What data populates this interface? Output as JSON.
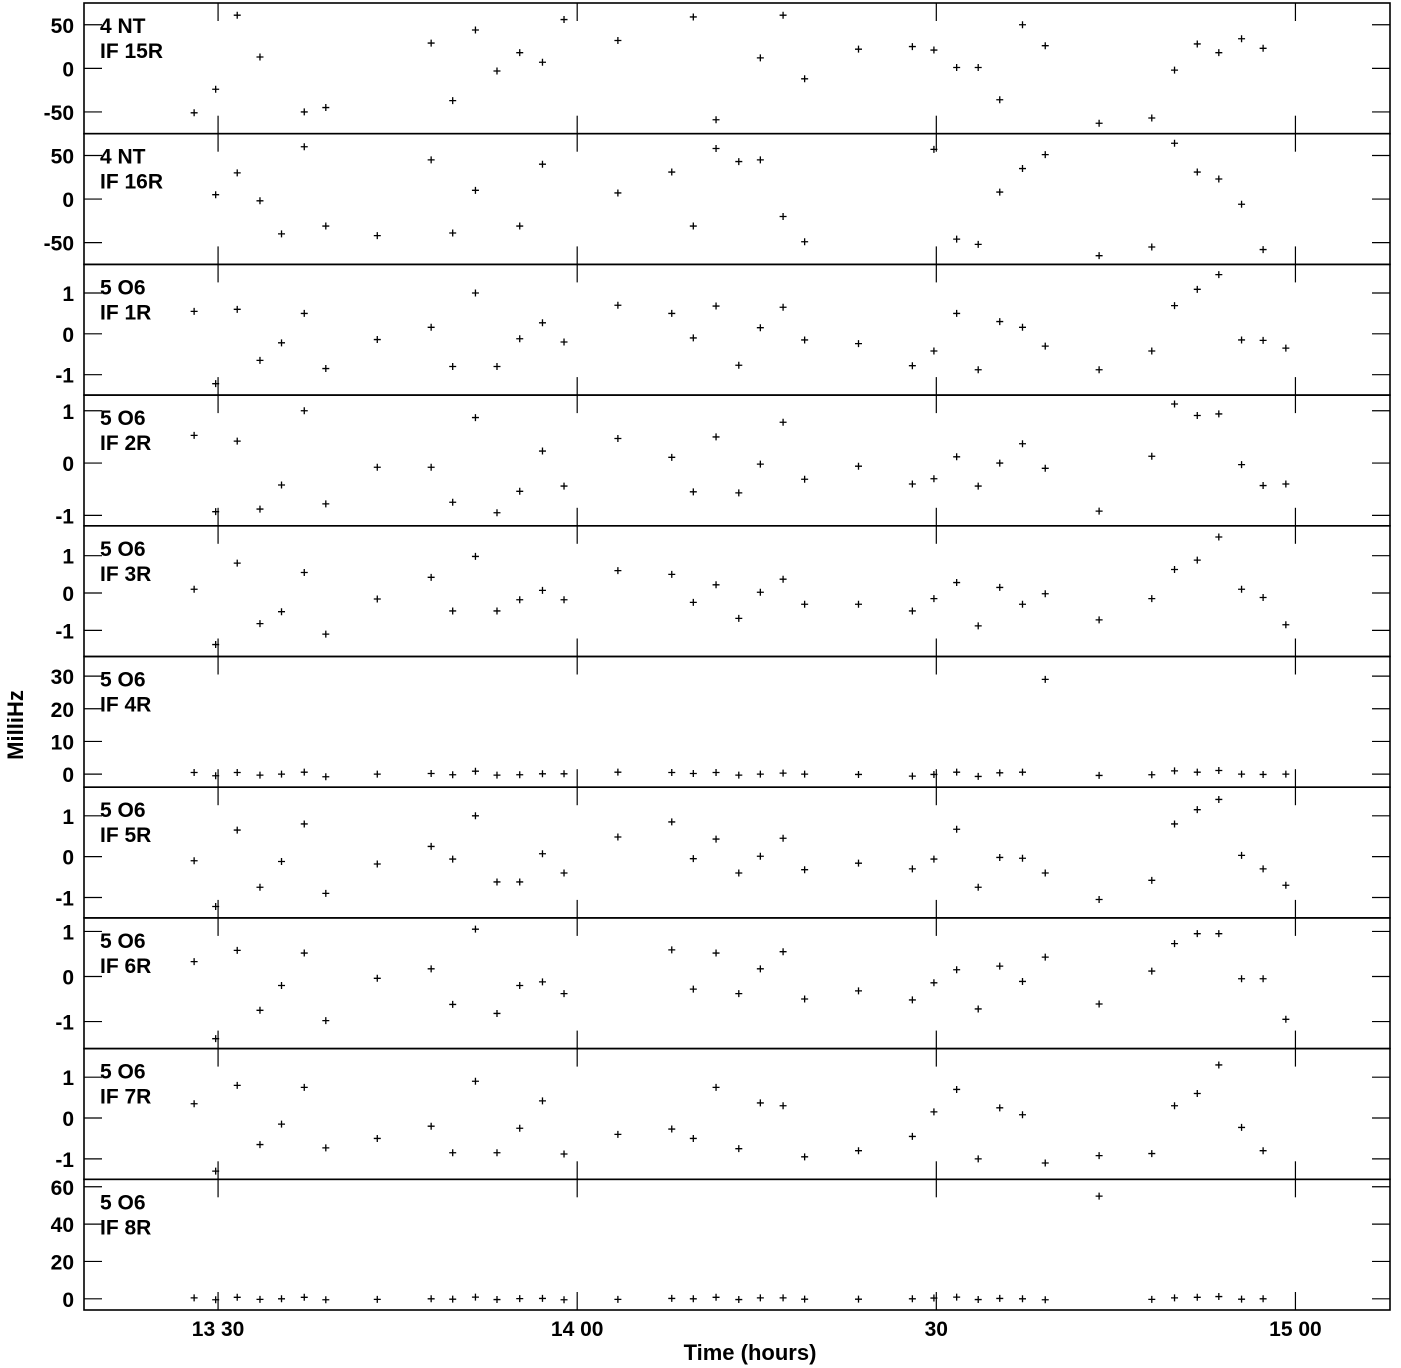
{
  "chart_data": {
    "type": "scatter",
    "ylabel": "MilliHz",
    "xlabel": "Time (hours)",
    "x_ticks": [
      "13 30",
      "14 00",
      "30",
      "15 00"
    ],
    "x_tick_minutes": [
      810,
      840,
      870,
      900
    ],
    "x_range_minutes": [
      798.8,
      907.9
    ],
    "times_minutes": [
      808.0,
      809.8,
      811.6,
      813.5,
      815.3,
      817.2,
      819.0,
      823.3,
      827.8,
      829.6,
      831.5,
      833.3,
      835.2,
      837.1,
      838.9,
      843.4,
      847.9,
      849.7,
      851.6,
      853.5,
      855.3,
      857.2,
      859.0,
      863.5,
      868.0,
      869.8,
      871.7,
      873.5,
      875.3,
      877.2,
      879.1,
      883.6,
      888.0,
      889.9,
      891.8,
      893.6,
      895.5,
      897.3,
      899.2
    ],
    "panels": [
      {
        "line1": "4 NT",
        "line2": "IF 15R",
        "ylim": [
          -75,
          75
        ],
        "yticks": [
          -50,
          0,
          50
        ],
        "values": [
          -51,
          -24,
          61,
          13,
          null,
          -50,
          -45,
          null,
          29,
          -37,
          44,
          -3,
          18,
          7,
          56,
          32,
          null,
          59,
          -59,
          null,
          12,
          61,
          -12,
          22,
          25,
          21,
          1,
          1,
          -36,
          50,
          26,
          -63,
          -57,
          -2,
          28,
          18,
          34,
          23,
          null
        ]
      },
      {
        "line1": "4 NT",
        "line2": "IF 16R",
        "ylim": [
          -75,
          75
        ],
        "yticks": [
          -50,
          0,
          50
        ],
        "values": [
          null,
          5,
          30,
          -2,
          -40,
          60,
          -31,
          -42,
          45,
          -39,
          10,
          null,
          -31,
          40,
          null,
          7,
          31,
          -31,
          58,
          43,
          45,
          -20,
          -49,
          null,
          null,
          57,
          -46,
          -52,
          8,
          35,
          51,
          -65,
          -55,
          64,
          31,
          23,
          -6,
          -58,
          null
        ]
      },
      {
        "line1": "5 O6",
        "line2": "IF 1R",
        "ylim": [
          -1.5,
          1.7
        ],
        "yticks": [
          -1,
          0,
          1
        ],
        "values": [
          0.55,
          -1.22,
          0.6,
          -0.65,
          -0.22,
          0.5,
          -0.85,
          -0.14,
          0.16,
          -0.8,
          1.0,
          -0.8,
          -0.12,
          0.27,
          -0.2,
          0.7,
          0.5,
          -0.1,
          0.68,
          -0.77,
          0.15,
          0.65,
          -0.15,
          -0.24,
          -0.78,
          -0.42,
          0.5,
          -0.88,
          0.3,
          0.16,
          -0.3,
          -0.88,
          -0.42,
          0.69,
          1.09,
          1.45,
          -0.15,
          -0.16,
          -0.35
        ]
      },
      {
        "line1": "5 O6",
        "line2": "IF 2R",
        "ylim": [
          -1.2,
          1.3
        ],
        "yticks": [
          -1,
          0,
          1
        ],
        "values": [
          0.53,
          -0.93,
          0.42,
          -0.88,
          -0.42,
          1.0,
          -0.78,
          -0.08,
          -0.08,
          -0.75,
          0.87,
          -0.95,
          -0.54,
          0.23,
          -0.44,
          0.47,
          0.11,
          -0.55,
          0.5,
          -0.57,
          -0.02,
          0.78,
          -0.31,
          -0.06,
          -0.4,
          -0.3,
          0.12,
          -0.44,
          0.0,
          0.37,
          -0.1,
          -0.92,
          0.13,
          1.13,
          0.91,
          0.94,
          -0.03,
          -0.43,
          -0.4
        ]
      },
      {
        "line1": "5 O6",
        "line2": "IF 3R",
        "ylim": [
          -1.7,
          1.8
        ],
        "yticks": [
          -1,
          0,
          1
        ],
        "values": [
          0.1,
          -1.38,
          0.8,
          -0.82,
          -0.5,
          0.55,
          -1.1,
          -0.16,
          0.42,
          -0.48,
          0.98,
          -0.48,
          -0.18,
          0.07,
          -0.18,
          0.6,
          0.5,
          -0.25,
          0.22,
          -0.68,
          0.02,
          0.37,
          -0.3,
          -0.3,
          -0.48,
          -0.15,
          0.28,
          -0.88,
          0.15,
          -0.3,
          -0.02,
          -0.72,
          -0.15,
          0.63,
          0.88,
          1.5,
          0.1,
          -0.12,
          -0.85
        ]
      },
      {
        "line1": "5 O6",
        "line2": "IF 4R",
        "ylim": [
          -4,
          36
        ],
        "yticks": [
          0,
          10,
          20,
          30
        ],
        "values": [
          0.5,
          -0.5,
          0.5,
          -0.3,
          0.0,
          0.6,
          -0.8,
          0.0,
          0.2,
          -0.2,
          0.9,
          -0.3,
          -0.2,
          0.1,
          0.1,
          0.6,
          0.5,
          0.2,
          0.5,
          -0.3,
          0.0,
          0.3,
          0.0,
          -0.1,
          -0.6,
          -0.1,
          0.6,
          -0.7,
          0.4,
          0.6,
          29.0,
          -0.4,
          -0.2,
          1.0,
          0.6,
          1.1,
          0.0,
          -0.1,
          0.0
        ]
      },
      {
        "line1": "5 O6",
        "line2": "IF 5R",
        "ylim": [
          -1.5,
          1.7
        ],
        "yticks": [
          -1,
          0,
          1
        ],
        "values": [
          -0.1,
          -1.22,
          0.65,
          -0.75,
          -0.12,
          0.8,
          -0.9,
          -0.18,
          0.25,
          -0.06,
          1.0,
          -0.62,
          -0.62,
          0.07,
          -0.4,
          0.48,
          0.85,
          -0.05,
          0.43,
          -0.4,
          0.01,
          0.45,
          -0.32,
          -0.16,
          -0.3,
          -0.06,
          0.67,
          -0.75,
          -0.02,
          -0.04,
          -0.4,
          -1.05,
          -0.58,
          0.8,
          1.15,
          1.4,
          0.03,
          -0.3,
          -0.7
        ]
      },
      {
        "line1": "5 O6",
        "line2": "IF 6R",
        "ylim": [
          -1.6,
          1.3
        ],
        "yticks": [
          -1,
          0,
          1
        ],
        "values": [
          0.33,
          -1.38,
          0.58,
          -0.75,
          -0.2,
          0.52,
          -0.98,
          -0.04,
          0.17,
          -0.62,
          1.05,
          -0.82,
          -0.2,
          -0.12,
          -0.38,
          null,
          0.59,
          -0.28,
          0.52,
          -0.38,
          0.17,
          0.55,
          -0.5,
          -0.32,
          -0.52,
          -0.14,
          0.15,
          -0.72,
          0.23,
          -0.11,
          0.43,
          -0.61,
          0.12,
          0.73,
          0.95,
          0.95,
          -0.05,
          -0.05,
          -0.95
        ]
      },
      {
        "line1": "5 O6",
        "line2": "IF 7R",
        "ylim": [
          -1.5,
          1.7
        ],
        "yticks": [
          -1,
          0,
          1
        ],
        "values": [
          0.35,
          -1.3,
          0.8,
          -0.65,
          -0.15,
          0.75,
          -0.73,
          -0.5,
          -0.2,
          -0.85,
          0.9,
          -0.85,
          -0.25,
          0.42,
          -0.88,
          -0.4,
          -0.27,
          -0.5,
          0.75,
          -0.75,
          0.37,
          0.3,
          -0.95,
          -0.8,
          -0.45,
          0.15,
          0.7,
          -1.0,
          0.25,
          0.08,
          -1.1,
          -0.92,
          -0.87,
          0.3,
          0.6,
          1.3,
          -0.23,
          -0.8,
          null
        ]
      },
      {
        "line1": "5 O6",
        "line2": "IF 8R",
        "ylim": [
          -6,
          64
        ],
        "yticks": [
          0,
          20,
          40,
          60
        ],
        "values": [
          0.5,
          -0.5,
          0.8,
          -0.3,
          0.0,
          0.8,
          -0.5,
          -0.3,
          0.0,
          -0.2,
          0.9,
          -0.4,
          0.1,
          0.2,
          -0.5,
          -0.3,
          0.2,
          0.0,
          0.8,
          -0.4,
          0.5,
          0.5,
          -0.2,
          -0.2,
          0.0,
          0.4,
          0.9,
          -0.4,
          0.2,
          0.0,
          -0.5,
          55.0,
          -0.3,
          0.5,
          0.8,
          1.2,
          -0.2,
          0.0,
          null
        ]
      }
    ]
  }
}
